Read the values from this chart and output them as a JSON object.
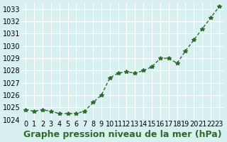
{
  "x": [
    0,
    1,
    2,
    3,
    4,
    5,
    6,
    7,
    8,
    9,
    10,
    11,
    12,
    13,
    14,
    15,
    16,
    17,
    18,
    19,
    20,
    21,
    22,
    23
  ],
  "y": [
    1024.8,
    1024.7,
    1024.8,
    1024.7,
    1024.5,
    1024.5,
    1024.5,
    1024.7,
    1025.4,
    1026.0,
    1027.4,
    1027.8,
    1027.9,
    1027.8,
    1028.0,
    1028.3,
    1029.0,
    1029.0,
    1028.6,
    1029.6,
    1030.5,
    1031.4,
    1032.3,
    1033.2
  ],
  "line_color": "#2d6a2d",
  "marker": "*",
  "background_color": "#d8f0f0",
  "grid_color": "#ffffff",
  "xlabel": "Graphe pression niveau de la mer (hPa)",
  "xlabel_fontsize": 9,
  "ylim": [
    1024.0,
    1033.5
  ],
  "xlim": [
    -0.5,
    23.5
  ],
  "yticks": [
    1024,
    1025,
    1026,
    1027,
    1028,
    1029,
    1030,
    1031,
    1032,
    1033
  ],
  "xticks": [
    0,
    1,
    2,
    3,
    4,
    5,
    6,
    7,
    8,
    9,
    10,
    11,
    12,
    13,
    14,
    15,
    16,
    17,
    18,
    19,
    20,
    21,
    22,
    23
  ],
  "tick_fontsize": 7,
  "title_color": "#2d6a2d"
}
